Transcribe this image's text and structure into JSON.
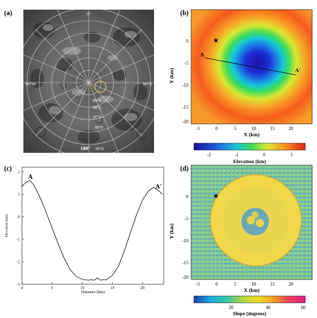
{
  "panels": {
    "a": {
      "label": "(a)",
      "map_labels": {
        "top": "0°",
        "left": "90°W",
        "right": "90°E",
        "bottom": "180°",
        "bottom_small": "85°S",
        "lat": [
          "89°S",
          "88°S",
          "87°S",
          "86°S"
        ]
      }
    },
    "b": {
      "label": "(b)",
      "ylabel": "Y (km)",
      "xlabel": "X (km)",
      "x_ticks": [
        "-5",
        "0",
        "5",
        "10",
        "15",
        "20"
      ],
      "y_ticks": [
        "0",
        "-5",
        "-10",
        "-15",
        "-20"
      ],
      "profile_start": "A",
      "profile_end": "A'",
      "colorbar_ticks": [
        "-2",
        "-1",
        "0",
        "1"
      ],
      "colorbar_title": "Elevation (km)"
    },
    "c": {
      "label": "(c)",
      "ylabel": "Elevation (km)",
      "xlabel": "Distance (km)",
      "x_ticks": [
        "0",
        "5",
        "10",
        "15",
        "20"
      ],
      "y_ticks": [
        "2",
        "1",
        "0",
        "-1",
        "-2",
        "-3"
      ],
      "start_label": "A",
      "end_label": "A'"
    },
    "d": {
      "label": "(d)",
      "ylabel": "Y (km)",
      "xlabel": "X (km)",
      "x_ticks": [
        "-5",
        "0",
        "5",
        "10",
        "15",
        "20"
      ],
      "y_ticks": [
        "0",
        "-5",
        "-10",
        "-15",
        "-20"
      ],
      "colorbar_ticks": [
        "20",
        "40",
        "60"
      ],
      "colorbar_title": "Slope (degrees)"
    }
  },
  "chart_data": [
    {
      "type": "line",
      "panel": "c",
      "xlabel": "Distance (km)",
      "ylabel": "Elevation (km)",
      "xlim": [
        0,
        23.5
      ],
      "ylim": [
        -3,
        2.2
      ],
      "x": [
        0,
        0.5,
        1.3,
        2,
        3,
        4,
        5,
        6,
        7,
        8,
        9,
        10,
        10.5,
        11,
        11.5,
        12,
        12.5,
        13,
        13.5,
        14,
        15,
        16,
        17,
        18,
        19,
        20,
        21,
        21.8,
        22.5,
        23.3
      ],
      "y": [
        1.35,
        1.5,
        1.62,
        1.4,
        0.85,
        0.2,
        -0.5,
        -1.2,
        -1.85,
        -2.35,
        -2.65,
        -2.78,
        -2.8,
        -2.82,
        -2.8,
        -2.82,
        -2.72,
        -2.82,
        -2.8,
        -2.8,
        -2.6,
        -2.2,
        -1.5,
        -0.7,
        0.1,
        0.75,
        1.15,
        1.3,
        1.2,
        1.0
      ]
    }
  ]
}
